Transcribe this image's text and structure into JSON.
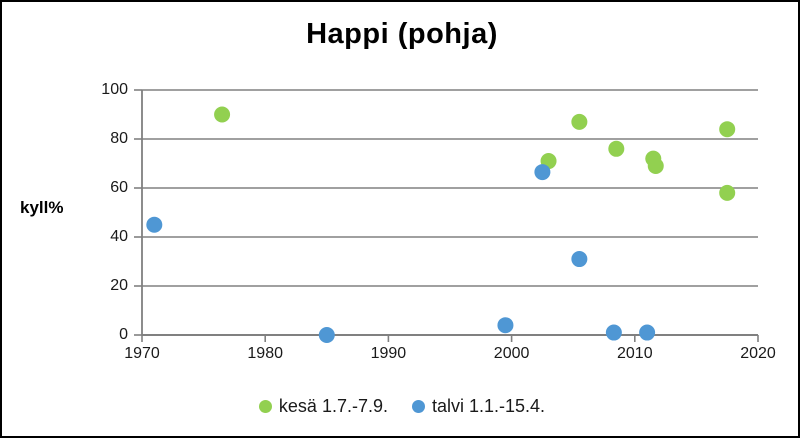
{
  "window": {
    "background_color": "#ffffff",
    "border_color": "#000000"
  },
  "chart_data": {
    "type": "scatter",
    "title": "Happi (pohja)",
    "ylabel": "kyll%",
    "xlabel": "",
    "xlim": [
      1970,
      2020
    ],
    "ylim": [
      0,
      100
    ],
    "x_ticks": [
      1970,
      1980,
      1990,
      2000,
      2010,
      2020
    ],
    "y_ticks": [
      0,
      20,
      40,
      60,
      80,
      100
    ],
    "grid": "horizontal",
    "legend_position": "bottom-center",
    "axis_color": "#808080",
    "text_color": "#1a1a1a",
    "marker_radius": 8,
    "series": [
      {
        "name": "kesä 1.7.-7.9.",
        "id": "kesa",
        "color": "#92d050",
        "points": [
          [
            1976.5,
            90
          ],
          [
            2003,
            71
          ],
          [
            2005.5,
            87
          ],
          [
            2008.5,
            76
          ],
          [
            2011.5,
            72
          ],
          [
            2011.7,
            69
          ],
          [
            2017.5,
            84
          ],
          [
            2017.5,
            58
          ]
        ]
      },
      {
        "name": "talvi 1.1.-15.4.",
        "id": "talvi",
        "color": "#4f97d4",
        "points": [
          [
            1971,
            45
          ],
          [
            1985,
            0
          ],
          [
            1999.5,
            4
          ],
          [
            2002.5,
            66.5
          ],
          [
            2005.5,
            31
          ],
          [
            2008.3,
            1
          ],
          [
            2011,
            1
          ]
        ]
      }
    ]
  }
}
